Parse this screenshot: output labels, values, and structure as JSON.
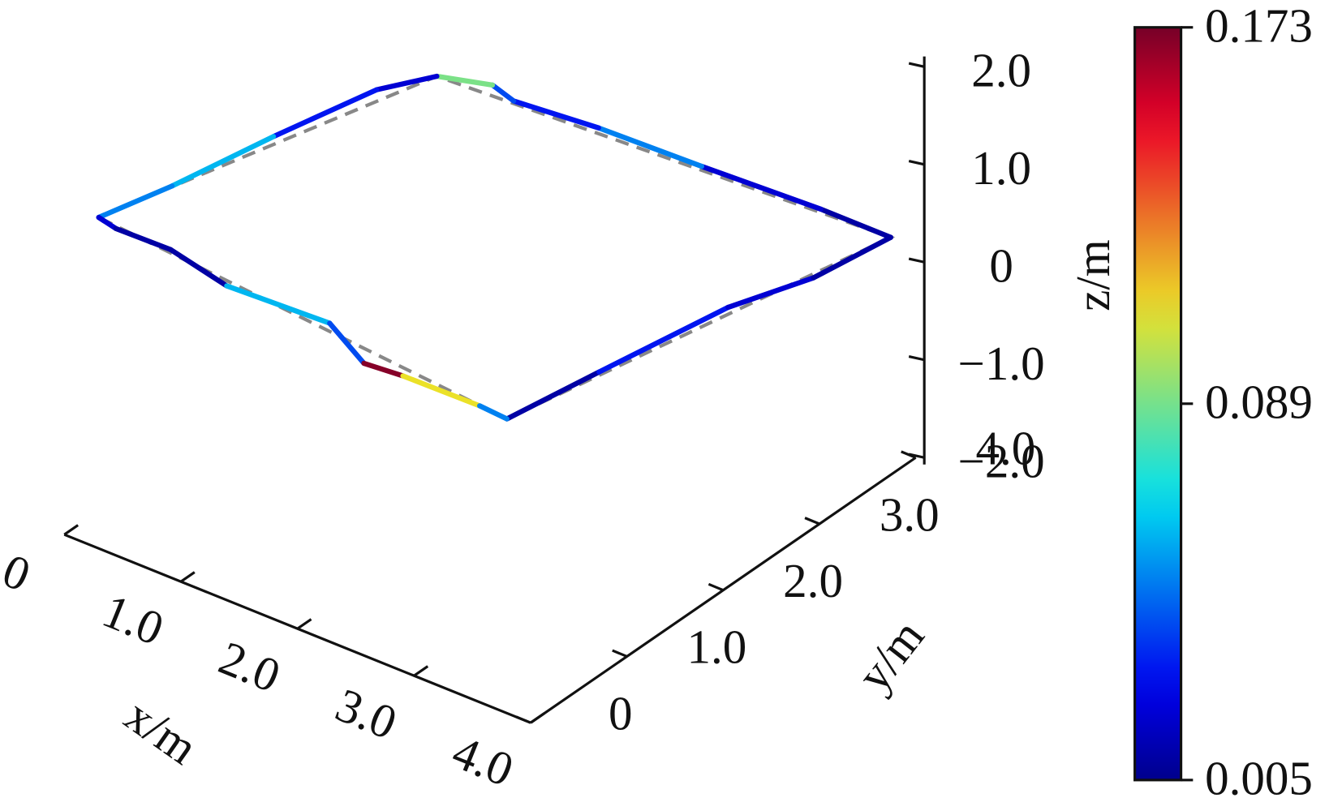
{
  "chart_data": {
    "type": "line3d",
    "xlabel": "x/m",
    "ylabel": "y/m",
    "zlabel": "z/m",
    "xlim": [
      0,
      4
    ],
    "ylim": [
      0,
      4
    ],
    "zlim": [
      -2,
      2
    ],
    "xticks": [
      0,
      {
        "value": 1,
        "label": "1.0"
      },
      {
        "value": 2,
        "label": "2.0"
      },
      {
        "value": 3,
        "label": "3.0"
      },
      {
        "value": 4,
        "label": "4.0"
      }
    ],
    "yticks": [
      0,
      {
        "value": 1,
        "label": "1.0"
      },
      {
        "value": 2,
        "label": "2.0"
      },
      {
        "value": 3,
        "label": "3.0"
      },
      {
        "value": 4,
        "label": "4.0"
      }
    ],
    "zticks": [
      {
        "value": -2,
        "label": "−2.0"
      },
      {
        "value": -1,
        "label": "−1.0"
      },
      0,
      {
        "value": 1,
        "label": "1.0"
      },
      {
        "value": 2,
        "label": "2.0"
      }
    ],
    "reference": {
      "color": "#888888",
      "dashed": true,
      "x": [
        -0.77,
        -0.05,
        3.67,
        3.02,
        -0.77
      ],
      "y": [
        1.29,
        3.93,
        4.14,
        0.94,
        1.29
      ],
      "z": [
        0,
        0,
        0,
        0,
        0
      ]
    },
    "trajectory": {
      "x": [
        3.02,
        3.15,
        3.34,
        3.57,
        3.67,
        3.07,
        2.09,
        1.23,
        0.56,
        0.32,
        -0.05,
        -0.27,
        -0.46,
        -0.62,
        -0.77,
        -0.59,
        -0.13,
        0.46,
        1.31,
        1.81,
        2.12,
        2.77,
        3.02
      ],
      "y": [
        0.94,
        1.74,
        2.85,
        3.46,
        4.14,
        4.14,
        4.09,
        4.06,
        3.99,
        4.06,
        3.93,
        3.57,
        2.73,
        1.87,
        1.29,
        1.25,
        1.26,
        1.13,
        1.17,
        0.92,
        0.95,
        0.96,
        0.94
      ],
      "z": [
        0,
        0,
        0,
        0,
        0,
        0,
        0,
        0,
        0,
        0,
        0,
        0,
        0,
        0,
        0,
        0,
        0,
        0,
        0,
        0,
        0,
        0,
        0
      ],
      "c": [
        0.01,
        0.03,
        0.02,
        0.01,
        0.01,
        0.02,
        0.05,
        0.03,
        0.04,
        0.09,
        0.02,
        0.03,
        0.06,
        0.05,
        0.02,
        0.01,
        0.01,
        0.06,
        0.04,
        0.17,
        0.11,
        0.05,
        0.01
      ]
    },
    "colorbar": {
      "colormap": "jet",
      "clim": [
        0.005,
        0.173
      ],
      "ticks": [
        0.005,
        0.089,
        0.173
      ]
    }
  }
}
